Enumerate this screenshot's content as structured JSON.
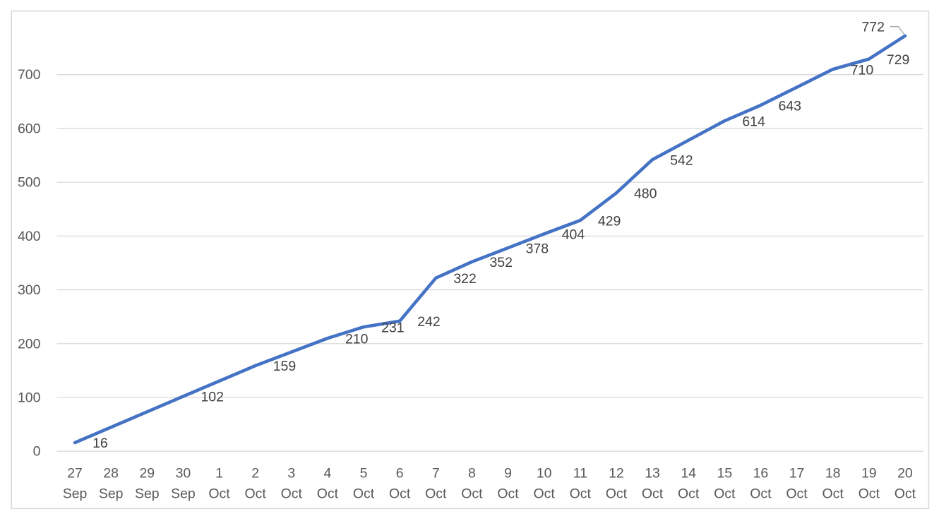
{
  "chart_data": {
    "type": "line",
    "title": "",
    "xlabel": "",
    "ylabel": "",
    "legend": "none",
    "grid": "horizontal",
    "line_smooth": false,
    "connect_gaps": true,
    "categories": [
      {
        "day": "27",
        "month": "Sep"
      },
      {
        "day": "28",
        "month": "Sep"
      },
      {
        "day": "29",
        "month": "Sep"
      },
      {
        "day": "30",
        "month": "Sep"
      },
      {
        "day": "1",
        "month": "Oct"
      },
      {
        "day": "2",
        "month": "Oct"
      },
      {
        "day": "3",
        "month": "Oct"
      },
      {
        "day": "4",
        "month": "Oct"
      },
      {
        "day": "5",
        "month": "Oct"
      },
      {
        "day": "6",
        "month": "Oct"
      },
      {
        "day": "7",
        "month": "Oct"
      },
      {
        "day": "8",
        "month": "Oct"
      },
      {
        "day": "9",
        "month": "Oct"
      },
      {
        "day": "10",
        "month": "Oct"
      },
      {
        "day": "11",
        "month": "Oct"
      },
      {
        "day": "12",
        "month": "Oct"
      },
      {
        "day": "13",
        "month": "Oct"
      },
      {
        "day": "14",
        "month": "Oct"
      },
      {
        "day": "15",
        "month": "Oct"
      },
      {
        "day": "16",
        "month": "Oct"
      },
      {
        "day": "17",
        "month": "Oct"
      },
      {
        "day": "18",
        "month": "Oct"
      },
      {
        "day": "19",
        "month": "Oct"
      },
      {
        "day": "20",
        "month": "Oct"
      }
    ],
    "values": [
      16,
      null,
      null,
      102,
      null,
      159,
      null,
      210,
      231,
      242,
      322,
      352,
      378,
      404,
      429,
      480,
      542,
      null,
      614,
      643,
      null,
      710,
      729,
      772
    ],
    "data_labels": [
      "16",
      "102",
      "159",
      "210",
      "231",
      "242",
      "322",
      "352",
      "378",
      "404",
      "429",
      "480",
      "542",
      "614",
      "643",
      "710",
      "729",
      "772"
    ],
    "y_ticks": [
      0,
      100,
      200,
      300,
      400,
      500,
      600,
      700
    ],
    "ylim": [
      0,
      780
    ]
  },
  "styles": {
    "series_color": "#4472C4",
    "gridline_color": "#D9D9D9",
    "axis_line_color": "#D9D9D9",
    "tick_label_color": "#595959",
    "data_label_color": "#404040",
    "leader_line_color": "#A6A6A6",
    "chart_border_color": "#D9D9D9",
    "background_color": "#FFFFFF"
  }
}
